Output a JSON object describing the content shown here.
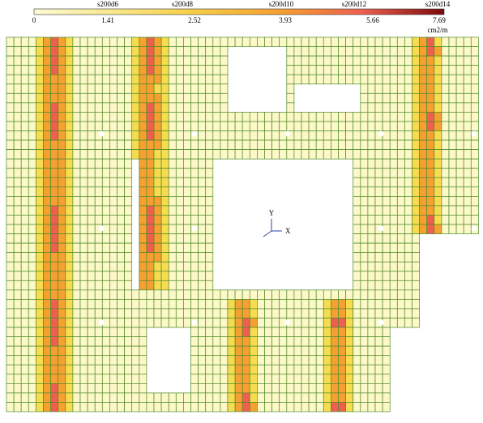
{
  "legend": {
    "bar_labels": [
      "s200d6",
      "s200d8",
      "s200d10",
      "s200d12",
      "s200d14"
    ],
    "scale_labels": [
      "0",
      "1.41",
      "2.52",
      "3.93",
      "5.66",
      "7.69"
    ],
    "unit": "cm2/m"
  },
  "axes": {
    "y_label": "Y",
    "x_label": "X"
  }
}
